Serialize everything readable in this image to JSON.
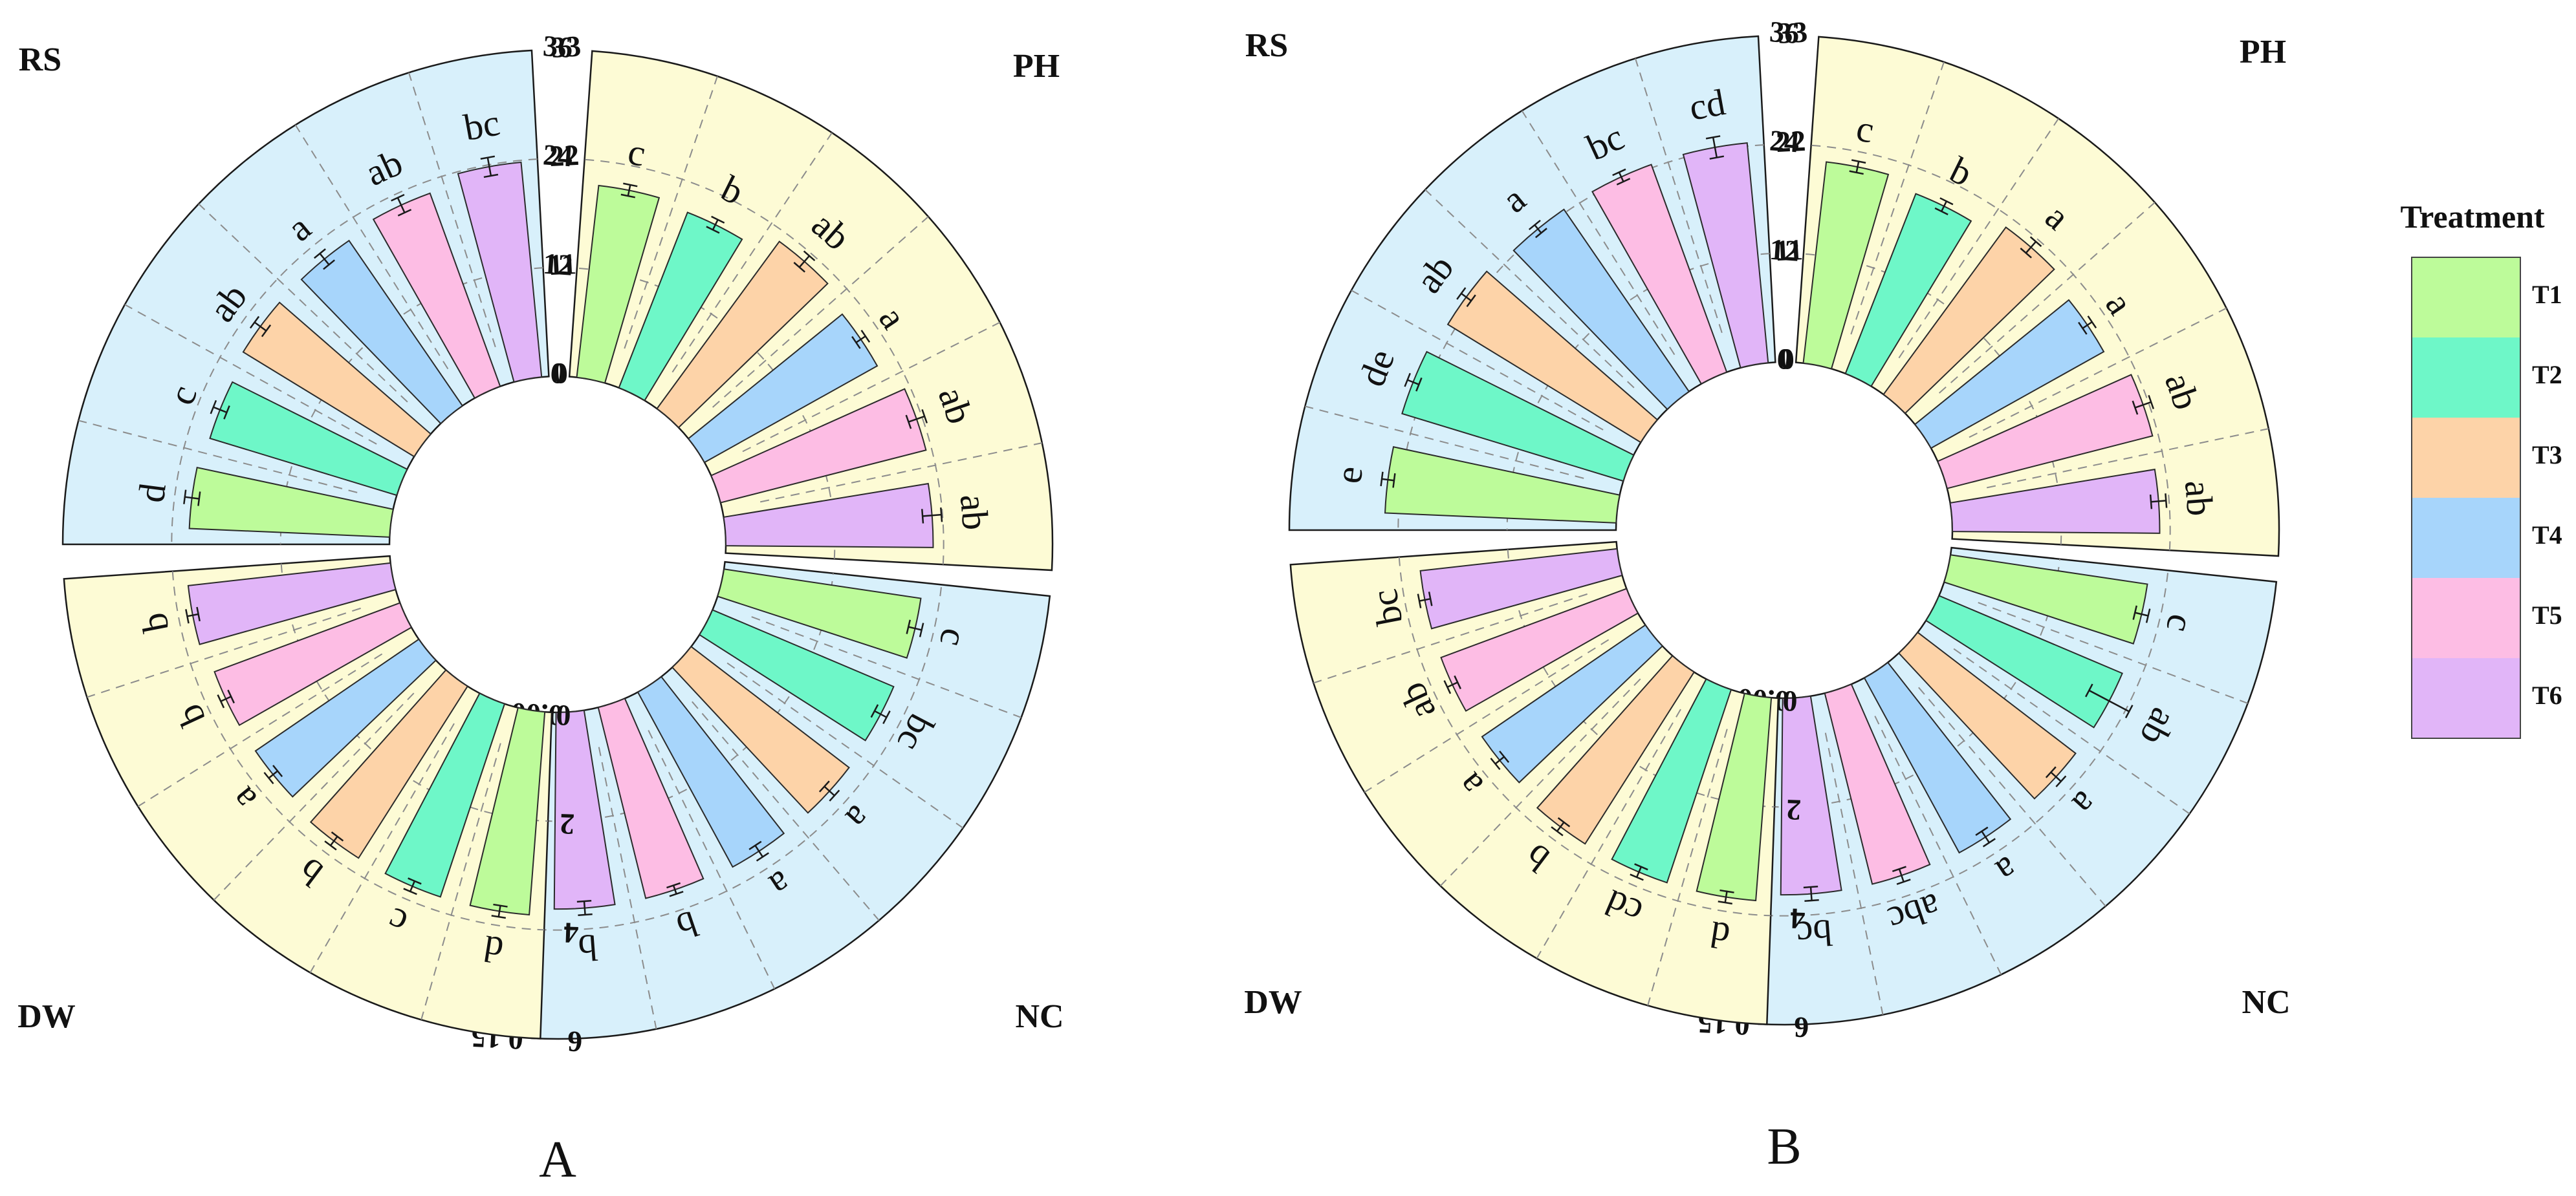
{
  "colors": {
    "blue_bg": "#d8f0fb",
    "yellow_bg": "#fdfbd5",
    "treatments": {
      "T1": "#bdfb9a",
      "T2": "#6ef7c8",
      "T3": "#fdd3a8",
      "T4": "#a7d5fb",
      "T5": "#fdbde4",
      "T6": "#e1b5f8"
    }
  },
  "legend": {
    "title": "Treatment",
    "items": [
      "T1",
      "T2",
      "T3",
      "T4",
      "T5",
      "T6"
    ]
  },
  "chart_data": [
    {
      "type": "bar",
      "layout": "circular-sectors",
      "panel_label": "A",
      "categories": [
        "T1",
        "T2",
        "T3",
        "T4",
        "T5",
        "T6"
      ],
      "sectors": [
        {
          "name": "RS",
          "background": "blue",
          "ylim": [
            0,
            33
          ],
          "ticks": [
            "0",
            "11",
            "22",
            "33"
          ],
          "values": [
            19.5,
            19.0,
            19.5,
            19.5,
            20.0,
            21.0
          ],
          "errors": [
            0.7,
            0.7,
            0.7,
            0.7,
            0.8,
            0.9
          ],
          "significance": [
            "d",
            "c",
            "ab",
            "a",
            "ab",
            "bc"
          ]
        },
        {
          "name": "PH",
          "background": "yellow",
          "ylim": [
            0,
            36
          ],
          "ticks": [
            "0",
            "12",
            "24",
            "36"
          ],
          "values": [
            20.5,
            20.0,
            22.0,
            21.0,
            22.5,
            22.0
          ],
          "errors": [
            0.6,
            0.6,
            0.8,
            0.6,
            0.9,
            1.0
          ],
          "significance": [
            "c",
            "b",
            "ab",
            "a",
            "ab",
            "ab"
          ]
        },
        {
          "name": "NC",
          "background": "blue",
          "ylim": [
            0,
            0.15
          ],
          "ticks": [
            "0.00",
            "0.05",
            "0.10",
            "0.15"
          ],
          "values": [
            0.088,
            0.087,
            0.088,
            0.088,
            0.087,
            0.087
          ],
          "errors": [
            0.003,
            0.003,
            0.003,
            0.003,
            0.002,
            0.003
          ],
          "significance": [
            "c",
            "bc",
            "a",
            "a",
            "b",
            "b"
          ]
        },
        {
          "name": "DW",
          "background": "yellow",
          "ylim": [
            0,
            6
          ],
          "ticks": [
            "0",
            "2",
            "4",
            "6"
          ],
          "values": [
            3.6,
            3.6,
            3.6,
            3.5,
            3.5,
            3.6
          ],
          "errors": [
            0.1,
            0.1,
            0.1,
            0.1,
            0.1,
            0.1
          ],
          "significance": [
            "d",
            "c",
            "b",
            "a",
            "b",
            "b"
          ]
        }
      ]
    },
    {
      "type": "bar",
      "layout": "circular-sectors",
      "panel_label": "B",
      "categories": [
        "T1",
        "T2",
        "T3",
        "T4",
        "T5",
        "T6"
      ],
      "sectors": [
        {
          "name": "RS",
          "background": "blue",
          "ylim": [
            0,
            33
          ],
          "ticks": [
            "0",
            "11",
            "22",
            "33"
          ],
          "values": [
            22.5,
            22.5,
            22.0,
            21.5,
            21.5,
            21.5
          ],
          "errors": [
            0.6,
            0.6,
            0.6,
            0.5,
            0.5,
            1.0
          ],
          "significance": [
            "e",
            "de",
            "ab",
            "a",
            "bc",
            "cd"
          ]
        },
        {
          "name": "PH",
          "background": "yellow",
          "ylim": [
            0,
            36
          ],
          "ticks": [
            "0",
            "12",
            "24",
            "36"
          ],
          "values": [
            21.5,
            20.5,
            22.0,
            21.0,
            22.5,
            22.0
          ],
          "errors": [
            0.6,
            0.6,
            0.8,
            0.6,
            0.9,
            0.8
          ],
          "significance": [
            "c",
            "b",
            "a",
            "a",
            "ab",
            "ab"
          ]
        },
        {
          "name": "NC",
          "background": "blue",
          "ylim": [
            0,
            0.15
          ],
          "ticks": [
            "0.00",
            "0.05",
            "0.10",
            "0.15"
          ],
          "values": [
            0.088,
            0.088,
            0.088,
            0.088,
            0.087,
            0.087
          ],
          "errors": [
            0.003,
            0.01,
            0.003,
            0.003,
            0.003,
            0.003
          ],
          "significance": [
            "c",
            "ab",
            "a",
            "a",
            "abc",
            "bc"
          ]
        },
        {
          "name": "DW",
          "background": "yellow",
          "ylim": [
            0,
            6
          ],
          "ticks": [
            "0",
            "2",
            "4",
            "6"
          ],
          "values": [
            3.6,
            3.6,
            3.6,
            3.5,
            3.5,
            3.5
          ],
          "errors": [
            0.1,
            0.1,
            0.1,
            0.1,
            0.1,
            0.1
          ],
          "significance": [
            "d",
            "cd",
            "b",
            "a",
            "ab",
            "bc"
          ]
        }
      ]
    }
  ]
}
